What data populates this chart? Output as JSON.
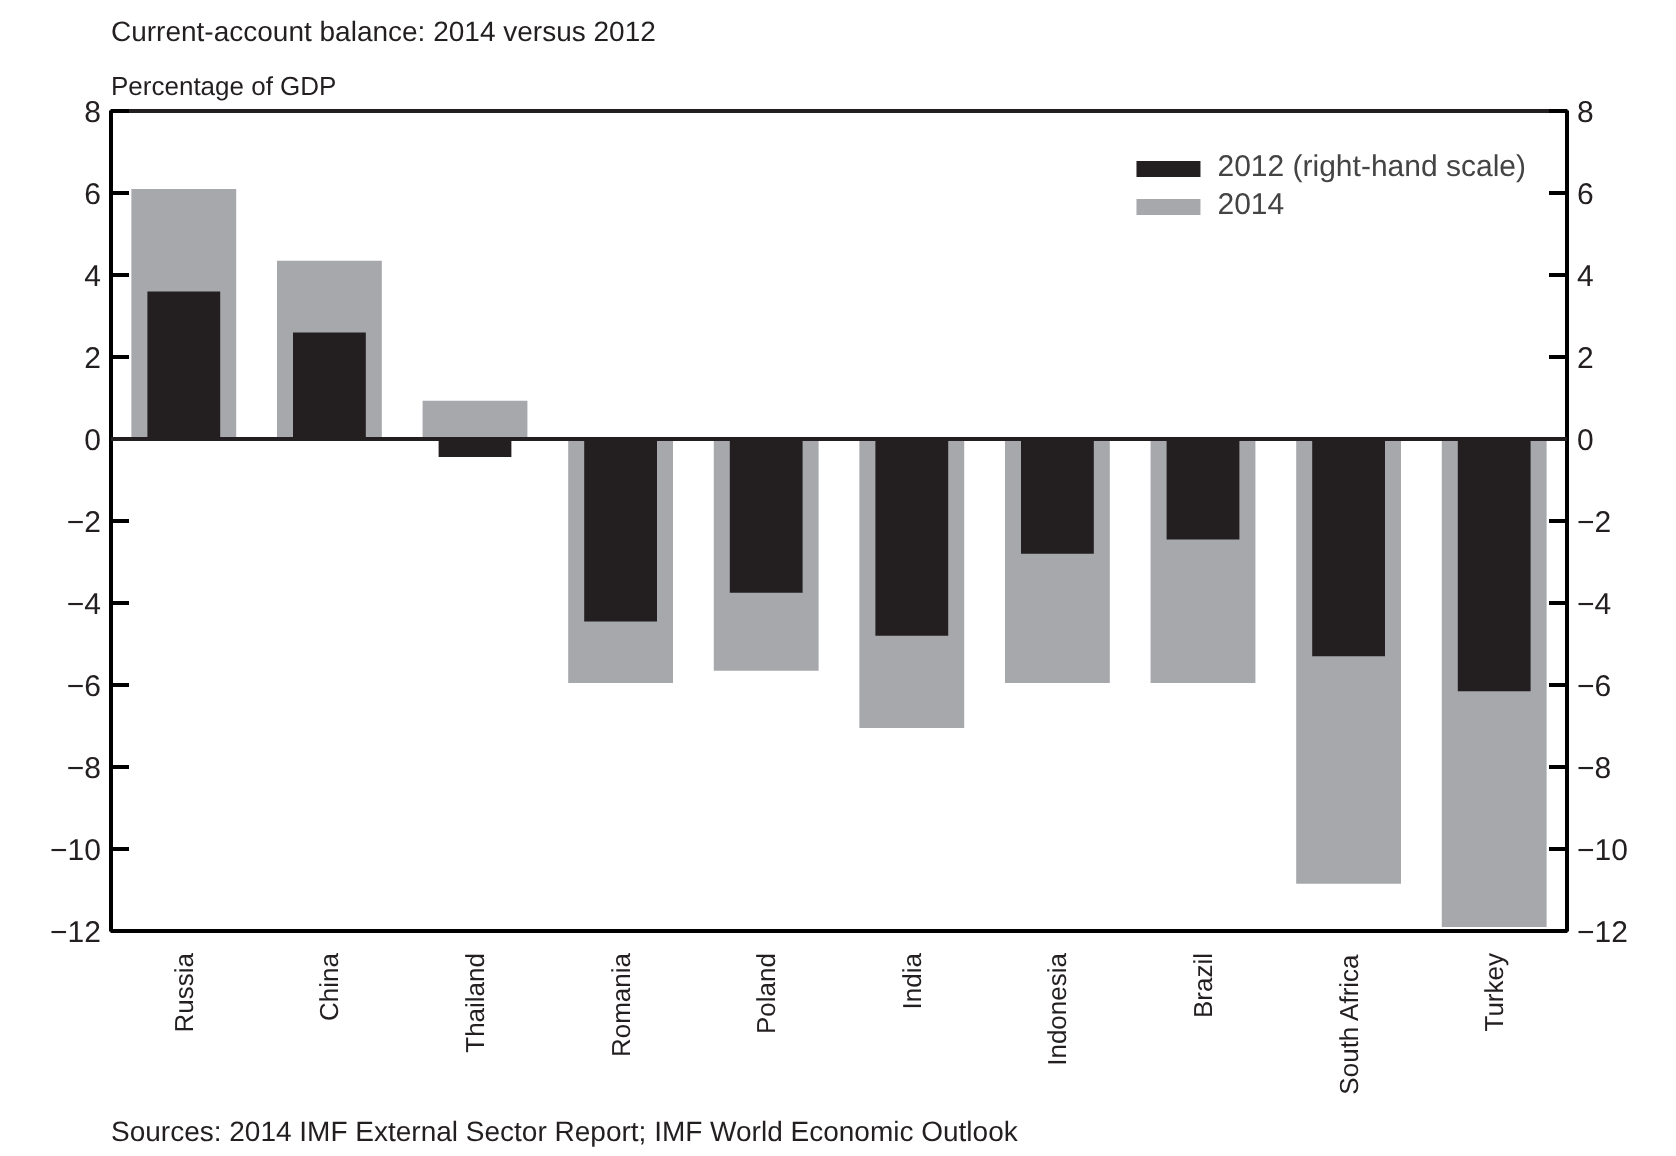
{
  "chart_data": {
    "type": "bar",
    "title": "Current-account balance: 2014 versus 2012",
    "ylabel": "Percentage of GDP",
    "categories": [
      "Russia",
      "China",
      "Thailand",
      "Romania",
      "Poland",
      "India",
      "Indonesia",
      "Brazil",
      "South Africa",
      "Turkey"
    ],
    "series": [
      {
        "name": "2014",
        "color": "#a7a8ab",
        "values": [
          6.1,
          4.35,
          0.93,
          -5.95,
          -5.65,
          -7.05,
          -5.95,
          -5.95,
          -10.85,
          -11.9
        ]
      },
      {
        "name": "2012 (right-hand scale)",
        "color": "#231f20",
        "axis": "y2",
        "values": [
          3.6,
          2.6,
          -0.44,
          -4.45,
          -3.75,
          -4.8,
          -2.8,
          -2.45,
          -5.3,
          -6.15
        ]
      }
    ],
    "ylim": [
      -12,
      8
    ],
    "yticks": [
      -12,
      -10,
      -8,
      -6,
      -4,
      -2,
      0,
      2,
      4,
      6,
      8
    ],
    "y2lim": [
      -12,
      8
    ],
    "y2ticks": [
      -12,
      -10,
      -8,
      -6,
      -4,
      -2,
      0,
      2,
      4,
      6,
      8
    ],
    "legend": "top right",
    "grid": false,
    "ref_lines": [
      {
        "axis": "y",
        "value": 0
      }
    ],
    "annotations": [
      "Sources: 2014 IMF External Sector Report; IMF World Economic Outlook"
    ]
  }
}
